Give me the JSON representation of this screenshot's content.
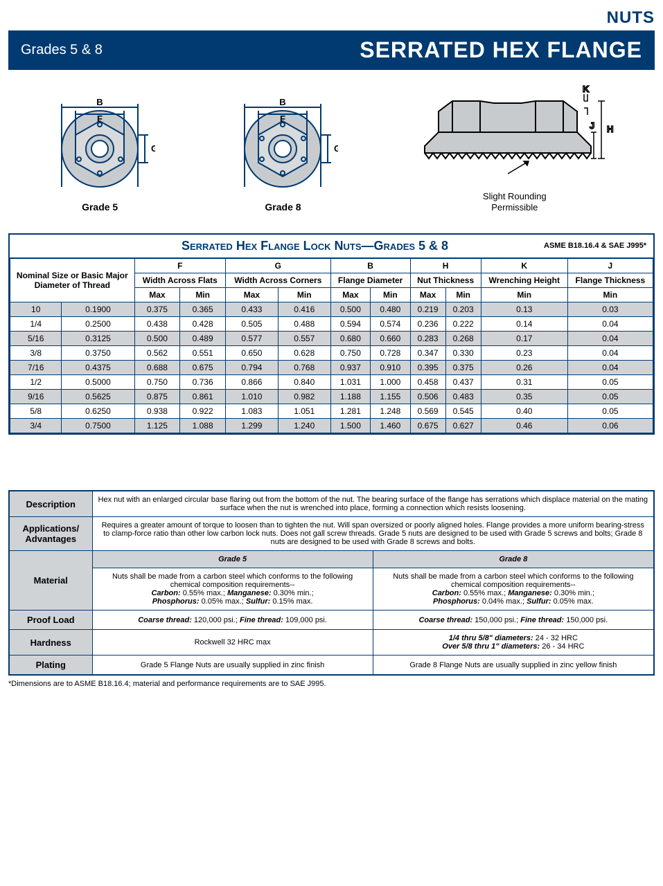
{
  "header": {
    "category": "NUTS",
    "grades": "Grades 5 & 8",
    "title": "SERRATED HEX FLANGE"
  },
  "diagrams": {
    "g5_caption": "Grade 5",
    "g8_caption": "Grade 8",
    "side_note1": "Slight Rounding",
    "side_note2": "Permissible",
    "labels": {
      "B": "B",
      "F": "F",
      "G": "G",
      "K": "K",
      "J": "J",
      "H": "H"
    },
    "colors": {
      "line": "#003a70",
      "fill": "#c8cbce",
      "black": "#000000"
    }
  },
  "spec_table": {
    "title": "Serrated Hex Flange Lock Nuts—Grades 5 & 8",
    "standard": "ASME B18.16.4 & SAE J995*",
    "nominal_header": "Nominal Size or Basic Major Diameter of Thread",
    "col_groups": [
      {
        "code": "F",
        "label": "Width Across Flats",
        "sub": [
          "Max",
          "Min"
        ]
      },
      {
        "code": "G",
        "label": "Width Across Corners",
        "sub": [
          "Max",
          "Min"
        ]
      },
      {
        "code": "B",
        "label": "Flange Diameter",
        "sub": [
          "Max",
          "Min"
        ]
      },
      {
        "code": "H",
        "label": "Nut Thickness",
        "sub": [
          "Max",
          "Min"
        ]
      },
      {
        "code": "K",
        "label": "Wrenching Height",
        "sub": [
          "Min"
        ]
      },
      {
        "code": "J",
        "label": "Flange Thickness",
        "sub": [
          "Min"
        ]
      }
    ],
    "rows": [
      {
        "size": "10",
        "dia": "0.1900",
        "F": [
          "0.375",
          "0.365"
        ],
        "G": [
          "0.433",
          "0.416"
        ],
        "B": [
          "0.500",
          "0.480"
        ],
        "H": [
          "0.219",
          "0.203"
        ],
        "K": "0.13",
        "J": "0.03"
      },
      {
        "size": "1/4",
        "dia": "0.2500",
        "F": [
          "0.438",
          "0.428"
        ],
        "G": [
          "0.505",
          "0.488"
        ],
        "B": [
          "0.594",
          "0.574"
        ],
        "H": [
          "0.236",
          "0.222"
        ],
        "K": "0.14",
        "J": "0.04"
      },
      {
        "size": "5/16",
        "dia": "0.3125",
        "F": [
          "0.500",
          "0.489"
        ],
        "G": [
          "0.577",
          "0.557"
        ],
        "B": [
          "0.680",
          "0.660"
        ],
        "H": [
          "0.283",
          "0.268"
        ],
        "K": "0.17",
        "J": "0.04"
      },
      {
        "size": "3/8",
        "dia": "0.3750",
        "F": [
          "0.562",
          "0.551"
        ],
        "G": [
          "0.650",
          "0.628"
        ],
        "B": [
          "0.750",
          "0.728"
        ],
        "H": [
          "0.347",
          "0.330"
        ],
        "K": "0.23",
        "J": "0.04"
      },
      {
        "size": "7/16",
        "dia": "0.4375",
        "F": [
          "0.688",
          "0.675"
        ],
        "G": [
          "0.794",
          "0.768"
        ],
        "B": [
          "0.937",
          "0.910"
        ],
        "H": [
          "0.395",
          "0.375"
        ],
        "K": "0.26",
        "J": "0.04"
      },
      {
        "size": "1/2",
        "dia": "0.5000",
        "F": [
          "0.750",
          "0.736"
        ],
        "G": [
          "0.866",
          "0.840"
        ],
        "B": [
          "1.031",
          "1.000"
        ],
        "H": [
          "0.458",
          "0.437"
        ],
        "K": "0.31",
        "J": "0.05"
      },
      {
        "size": "9/16",
        "dia": "0.5625",
        "F": [
          "0.875",
          "0.861"
        ],
        "G": [
          "1.010",
          "0.982"
        ],
        "B": [
          "1.188",
          "1.155"
        ],
        "H": [
          "0.506",
          "0.483"
        ],
        "K": "0.35",
        "J": "0.05"
      },
      {
        "size": "5/8",
        "dia": "0.6250",
        "F": [
          "0.938",
          "0.922"
        ],
        "G": [
          "1.083",
          "1.051"
        ],
        "B": [
          "1.281",
          "1.248"
        ],
        "H": [
          "0.569",
          "0.545"
        ],
        "K": "0.40",
        "J": "0.05"
      },
      {
        "size": "3/4",
        "dia": "0.7500",
        "F": [
          "1.125",
          "1.088"
        ],
        "G": [
          "1.299",
          "1.240"
        ],
        "B": [
          "1.500",
          "1.460"
        ],
        "H": [
          "0.675",
          "0.627"
        ],
        "K": "0.46",
        "J": "0.06"
      }
    ]
  },
  "info_table": {
    "description_label": "Description",
    "description_text": "Hex nut with an enlarged circular base flaring out from the bottom of the nut. The bearing surface of the flange has serrations which displace material on the mating surface when the nut is wrenched into place, forming a connection which resists loosening.",
    "apps_label": "Applications/ Advantages",
    "apps_text": "Requires a greater amount of torque to loosen than to tighten the nut. Will span oversized or poorly aligned holes. Flange provides a more uniform bearing-stress to clamp-force ratio than other low carbon lock nuts. Does not gall screw threads. Grade 5 nuts are designed to be used with Grade 5 screws and bolts; Grade 8 nuts are designed to be used with Grade 8 screws and bolts.",
    "col_g5": "Grade 5",
    "col_g8": "Grade 8",
    "material_label": "Material",
    "material_g5_intro": "Nuts shall be made from a carbon steel which conforms to the following chemical composition requirements--",
    "material_g5_spec": {
      "carbon": "0.55% max.;",
      "manganese": "0.30% min.;",
      "phosphorus": "0.05% max.;",
      "sulfur": "0.15% max."
    },
    "material_g8_intro": "Nuts shall be made from a carbon steel which conforms to the following chemical composition requirements--",
    "material_g8_spec": {
      "carbon": "0.55% max.;",
      "manganese": "0.30% min.;",
      "phosphorus": "0.04% max.;",
      "sulfur": "0.05% max."
    },
    "proof_label": "Proof Load",
    "proof_g5": {
      "coarse": "120,000 psi.;",
      "fine": "109,000 psi."
    },
    "proof_g8": {
      "coarse": "150,000 psi.;",
      "fine": "150,000 psi."
    },
    "hardness_label": "Hardness",
    "hardness_g5": "Rockwell 32 HRC max",
    "hardness_g8_l1a": "1/4 thru 5/8\" diameters:",
    "hardness_g8_l1b": "24 - 32 HRC",
    "hardness_g8_l2a": "Over 5/8 thru 1\" diameters:",
    "hardness_g8_l2b": "26 - 34 HRC",
    "plating_label": "Plating",
    "plating_g5": "Grade 5 Flange Nuts are usually supplied in zinc finish",
    "plating_g8": "Grade 8 Flange Nuts are usually supplied in zinc yellow finish"
  },
  "footnote": "*Dimensions are to ASME B18.16.4; material and performance requirements are to SAE J995.",
  "chem_labels": {
    "carbon": "Carbon:",
    "manganese": "Manganese:",
    "phosphorus": "Phosphorus:",
    "sulfur": "Sulfur:"
  },
  "proof_labels": {
    "coarse": "Coarse thread:",
    "fine": "Fine thread:"
  }
}
